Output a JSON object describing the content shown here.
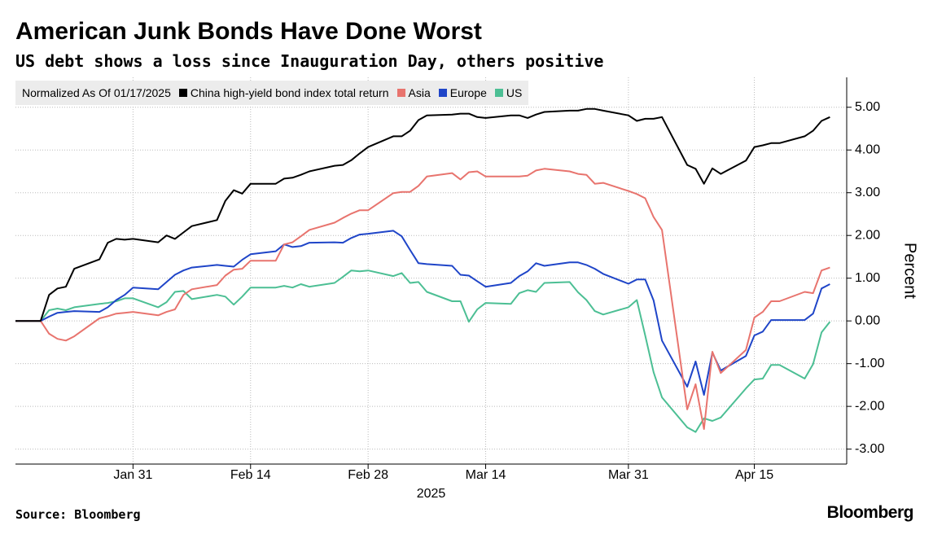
{
  "chart_data": {
    "type": "line",
    "title": "American Junk Bonds Have Done Worst",
    "subtitle": "US debt shows a loss since Inauguration Day, others positive",
    "legend_title": "Normalized As Of 01/17/2025",
    "source": "Source: Bloomberg",
    "brand": "Bloomberg",
    "y_label": "Percent",
    "x_label": "2025",
    "x": [
      "2025-01-17",
      "2025-01-20",
      "2025-01-21",
      "2025-01-22",
      "2025-01-23",
      "2025-01-24",
      "2025-01-27",
      "2025-01-28",
      "2025-01-29",
      "2025-01-30",
      "2025-01-31",
      "2025-02-03",
      "2025-02-04",
      "2025-02-05",
      "2025-02-06",
      "2025-02-07",
      "2025-02-10",
      "2025-02-11",
      "2025-02-12",
      "2025-02-13",
      "2025-02-14",
      "2025-02-17",
      "2025-02-18",
      "2025-02-19",
      "2025-02-20",
      "2025-02-21",
      "2025-02-24",
      "2025-02-25",
      "2025-02-26",
      "2025-02-27",
      "2025-02-28",
      "2025-03-03",
      "2025-03-04",
      "2025-03-05",
      "2025-03-06",
      "2025-03-07",
      "2025-03-10",
      "2025-03-11",
      "2025-03-12",
      "2025-03-13",
      "2025-03-14",
      "2025-03-17",
      "2025-03-18",
      "2025-03-19",
      "2025-03-20",
      "2025-03-21",
      "2025-03-24",
      "2025-03-25",
      "2025-03-26",
      "2025-03-27",
      "2025-03-28",
      "2025-03-31",
      "2025-04-01",
      "2025-04-02",
      "2025-04-03",
      "2025-04-04",
      "2025-04-07",
      "2025-04-08",
      "2025-04-09",
      "2025-04-10",
      "2025-04-11",
      "2025-04-14",
      "2025-04-15",
      "2025-04-16",
      "2025-04-17",
      "2025-04-18",
      "2025-04-21",
      "2025-04-22",
      "2025-04-23",
      "2025-04-24"
    ],
    "series": [
      {
        "name": "China high-yield bond index total return",
        "color": "#000000",
        "values": [
          0,
          0,
          0.61,
          0.76,
          0.8,
          1.22,
          1.44,
          1.83,
          1.92,
          1.9,
          1.92,
          1.84,
          2.0,
          1.92,
          2.07,
          2.22,
          2.36,
          2.81,
          3.06,
          2.98,
          3.21,
          3.21,
          3.33,
          3.35,
          3.42,
          3.5,
          3.63,
          3.65,
          3.76,
          3.92,
          4.07,
          4.32,
          4.32,
          4.45,
          4.7,
          4.81,
          4.83,
          4.85,
          4.85,
          4.77,
          4.75,
          4.81,
          4.81,
          4.75,
          4.83,
          4.89,
          4.92,
          4.92,
          4.96,
          4.96,
          4.92,
          4.81,
          4.68,
          4.73,
          4.73,
          4.77,
          3.65,
          3.56,
          3.21,
          3.57,
          3.44,
          3.75,
          4.07,
          4.11,
          4.16,
          4.16,
          4.32,
          4.45,
          4.68,
          4.77
        ]
      },
      {
        "name": "Asia",
        "color": "#e8746e",
        "values": [
          0,
          0,
          -0.3,
          -0.42,
          -0.46,
          -0.36,
          0.06,
          0.11,
          0.17,
          0.19,
          0.21,
          0.13,
          0.21,
          0.27,
          0.61,
          0.74,
          0.84,
          1.06,
          1.2,
          1.22,
          1.41,
          1.41,
          1.79,
          1.84,
          1.98,
          2.13,
          2.3,
          2.41,
          2.51,
          2.59,
          2.59,
          2.99,
          3.02,
          3.02,
          3.16,
          3.38,
          3.46,
          3.31,
          3.48,
          3.5,
          3.38,
          3.38,
          3.38,
          3.4,
          3.52,
          3.56,
          3.5,
          3.44,
          3.42,
          3.21,
          3.23,
          3.04,
          2.97,
          2.87,
          2.43,
          2.13,
          -2.07,
          -1.48,
          -2.53,
          -0.72,
          -1.22,
          -0.68,
          0.08,
          0.21,
          0.46,
          0.46,
          0.68,
          0.65,
          1.18,
          1.25
        ]
      },
      {
        "name": "Europe",
        "color": "#1f45c8",
        "values": [
          0,
          0,
          0.1,
          0.19,
          0.21,
          0.23,
          0.21,
          0.32,
          0.49,
          0.61,
          0.78,
          0.74,
          0.91,
          1.08,
          1.18,
          1.25,
          1.31,
          1.29,
          1.27,
          1.43,
          1.56,
          1.63,
          1.79,
          1.73,
          1.75,
          1.83,
          1.84,
          1.83,
          1.94,
          2.02,
          2.04,
          2.11,
          1.98,
          1.66,
          1.35,
          1.33,
          1.29,
          1.08,
          1.06,
          0.93,
          0.8,
          0.89,
          1.05,
          1.16,
          1.35,
          1.29,
          1.37,
          1.37,
          1.31,
          1.22,
          1.1,
          0.87,
          0.97,
          0.97,
          0.48,
          -0.46,
          -1.54,
          -0.95,
          -1.73,
          -0.74,
          -1.16,
          -0.82,
          -0.34,
          -0.25,
          0.02,
          0.02,
          0.02,
          0.17,
          0.76,
          0.86
        ]
      },
      {
        "name": "US",
        "color": "#4cbf94",
        "values": [
          0,
          0,
          0.25,
          0.29,
          0.25,
          0.32,
          0.4,
          0.42,
          0.46,
          0.53,
          0.53,
          0.32,
          0.44,
          0.68,
          0.7,
          0.51,
          0.61,
          0.57,
          0.38,
          0.57,
          0.78,
          0.78,
          0.82,
          0.78,
          0.86,
          0.8,
          0.89,
          1.03,
          1.18,
          1.16,
          1.18,
          1.05,
          1.12,
          0.89,
          0.91,
          0.68,
          0.46,
          0.46,
          -0.02,
          0.27,
          0.42,
          0.4,
          0.65,
          0.72,
          0.68,
          0.89,
          0.91,
          0.67,
          0.49,
          0.23,
          0.15,
          0.32,
          0.49,
          -0.34,
          -1.2,
          -1.79,
          -2.49,
          -2.6,
          -2.28,
          -2.34,
          -2.26,
          -1.58,
          -1.37,
          -1.35,
          -1.03,
          -1.03,
          -1.35,
          -1.01,
          -0.27,
          -0.02
        ]
      }
    ],
    "xlim": [
      "2025-01-17",
      "2025-04-26"
    ],
    "xticks": [
      {
        "value": "2025-01-31",
        "label": "Jan 31"
      },
      {
        "value": "2025-02-14",
        "label": "Feb 14"
      },
      {
        "value": "2025-02-28",
        "label": "Feb 28"
      },
      {
        "value": "2025-03-14",
        "label": "Mar 14"
      },
      {
        "value": "2025-03-31",
        "label": "Mar 31"
      },
      {
        "value": "2025-04-15",
        "label": "Apr 15"
      }
    ],
    "ylim": [
      -3.35,
      5.7
    ],
    "yticks": [
      {
        "value": 5,
        "label": "5.00"
      },
      {
        "value": 4,
        "label": "4.00"
      },
      {
        "value": 3,
        "label": "3.00"
      },
      {
        "value": 2,
        "label": "2.00"
      },
      {
        "value": 1,
        "label": "1.00"
      },
      {
        "value": 0,
        "label": "0.00"
      },
      {
        "value": -1,
        "label": "-1.00"
      },
      {
        "value": -2,
        "label": "-2.00"
      },
      {
        "value": -3,
        "label": "-3.00"
      }
    ],
    "y_axis_side": "right",
    "grid": true
  }
}
